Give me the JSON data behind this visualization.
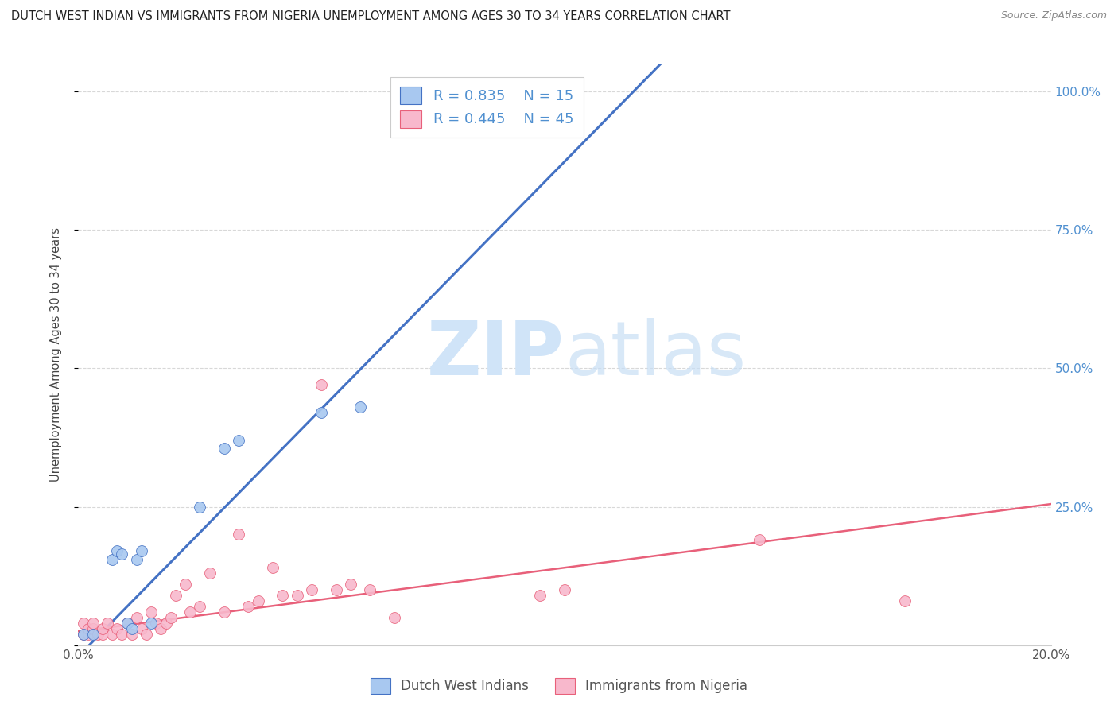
{
  "title": "DUTCH WEST INDIAN VS IMMIGRANTS FROM NIGERIA UNEMPLOYMENT AMONG AGES 30 TO 34 YEARS CORRELATION CHART",
  "source": "Source: ZipAtlas.com",
  "ylabel": "Unemployment Among Ages 30 to 34 years",
  "x_min": 0.0,
  "x_max": 0.2,
  "y_min": 0.0,
  "y_max": 1.05,
  "legend_label_blue": "Dutch West Indians",
  "legend_label_pink": "Immigrants from Nigeria",
  "R_blue": 0.835,
  "N_blue": 15,
  "R_pink": 0.445,
  "N_pink": 45,
  "blue_scatter_color": "#a8c8f0",
  "pink_scatter_color": "#f8b8cc",
  "blue_line_color": "#4472c4",
  "pink_line_color": "#e8607a",
  "right_axis_color": "#5090d0",
  "watermark_color": "#d0e4f8",
  "grid_color": "#d8d8d8",
  "dutch_x": [
    0.001,
    0.003,
    0.007,
    0.008,
    0.009,
    0.01,
    0.011,
    0.012,
    0.013,
    0.015,
    0.025,
    0.03,
    0.033,
    0.05,
    0.058
  ],
  "dutch_y": [
    0.02,
    0.02,
    0.155,
    0.17,
    0.165,
    0.04,
    0.03,
    0.155,
    0.17,
    0.04,
    0.25,
    0.355,
    0.37,
    0.42,
    0.43
  ],
  "nigeria_x": [
    0.001,
    0.001,
    0.002,
    0.002,
    0.003,
    0.003,
    0.004,
    0.005,
    0.005,
    0.006,
    0.007,
    0.008,
    0.009,
    0.01,
    0.011,
    0.012,
    0.013,
    0.014,
    0.015,
    0.016,
    0.017,
    0.018,
    0.019,
    0.02,
    0.022,
    0.023,
    0.025,
    0.027,
    0.03,
    0.033,
    0.035,
    0.037,
    0.04,
    0.042,
    0.045,
    0.048,
    0.05,
    0.053,
    0.056,
    0.06,
    0.065,
    0.095,
    0.1,
    0.14,
    0.17
  ],
  "nigeria_y": [
    0.02,
    0.04,
    0.02,
    0.03,
    0.03,
    0.04,
    0.02,
    0.02,
    0.03,
    0.04,
    0.02,
    0.03,
    0.02,
    0.04,
    0.02,
    0.05,
    0.03,
    0.02,
    0.06,
    0.04,
    0.03,
    0.04,
    0.05,
    0.09,
    0.11,
    0.06,
    0.07,
    0.13,
    0.06,
    0.2,
    0.07,
    0.08,
    0.14,
    0.09,
    0.09,
    0.1,
    0.47,
    0.1,
    0.11,
    0.1,
    0.05,
    0.09,
    0.1,
    0.19,
    0.08
  ],
  "blue_trend_x": [
    0.0,
    0.122
  ],
  "blue_trend_y": [
    -0.02,
    1.07
  ],
  "pink_trend_x": [
    0.0,
    0.2
  ],
  "pink_trend_y": [
    0.025,
    0.255
  ],
  "x_ticks": [
    0.0,
    0.05,
    0.1,
    0.15,
    0.2
  ],
  "x_tick_labels": [
    "0.0%",
    "",
    "",
    "",
    "20.0%"
  ],
  "y_ticks": [
    0.0,
    0.25,
    0.5,
    0.75,
    1.0
  ],
  "y_tick_labels": [
    "",
    "25.0%",
    "50.0%",
    "75.0%",
    "100.0%"
  ]
}
